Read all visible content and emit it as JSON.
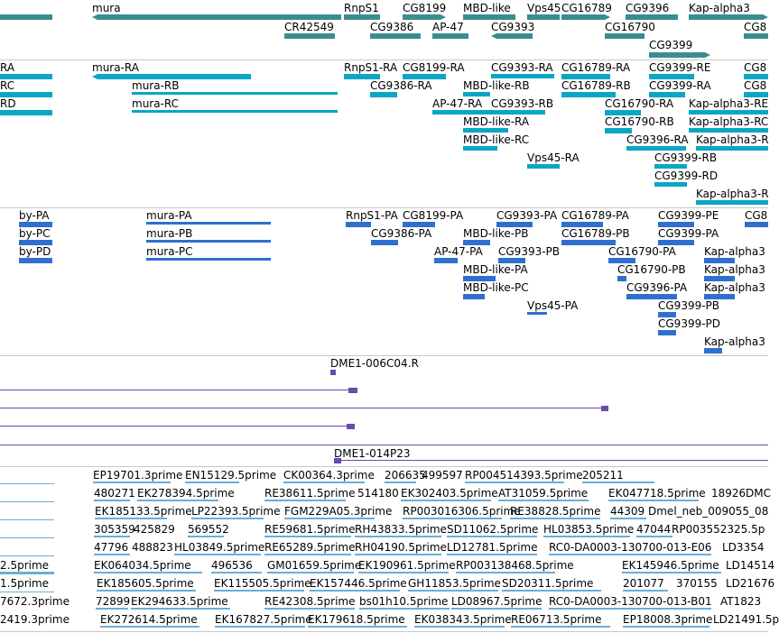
{
  "colors": {
    "gene": "#3a8d8f",
    "transcript": "#0aa6c4",
    "protein": "#2f6fd0",
    "clone": "#6a4ba8",
    "est": "#6aaed8",
    "separator": "#c8c8c8"
  },
  "tracks": {
    "genes": [
      {
        "label": "mura"
      },
      {
        "label": "RnpS1"
      },
      {
        "label": "CG8199"
      },
      {
        "label": "MBD-like"
      },
      {
        "label": "Vps45"
      },
      {
        "label": "CG16789"
      },
      {
        "label": "CG9396"
      },
      {
        "label": "Kap-alpha3"
      },
      {
        "label": "CR42549"
      },
      {
        "label": "CG9386"
      },
      {
        "label": "AP-47"
      },
      {
        "label": "CG9393"
      },
      {
        "label": "CG16790"
      },
      {
        "label": "CG8"
      },
      {
        "label": "CG9399"
      }
    ],
    "transcripts": [
      {
        "label": "RA"
      },
      {
        "label": "RC"
      },
      {
        "label": "RD"
      },
      {
        "label": "mura-RA"
      },
      {
        "label": "mura-RB"
      },
      {
        "label": "mura-RC"
      },
      {
        "label": "RnpS1-RA"
      },
      {
        "label": "CG8199-RA"
      },
      {
        "label": "CG9393-RA"
      },
      {
        "label": "CG16789-RA"
      },
      {
        "label": "CG9399-RE"
      },
      {
        "label": "CG8"
      },
      {
        "label": "CG9386-RA"
      },
      {
        "label": "MBD-like-RB"
      },
      {
        "label": "CG16789-RB"
      },
      {
        "label": "CG9399-RA"
      },
      {
        "label": "CG8"
      },
      {
        "label": "AP-47-RA"
      },
      {
        "label": "CG9393-RB"
      },
      {
        "label": "CG16790-RA"
      },
      {
        "label": "Kap-alpha3-RE"
      },
      {
        "label": "MBD-like-RA"
      },
      {
        "label": "CG16790-RB"
      },
      {
        "label": "Kap-alpha3-RC"
      },
      {
        "label": "MBD-like-RC"
      },
      {
        "label": "CG9396-RA"
      },
      {
        "label": "Kap-alpha3-R"
      },
      {
        "label": "Vps45-RA"
      },
      {
        "label": "CG9399-RB"
      },
      {
        "label": "CG9399-RD"
      },
      {
        "label": "Kap-alpha3-R"
      }
    ],
    "proteins": [
      {
        "label": "by-PA"
      },
      {
        "label": "by-PC"
      },
      {
        "label": "by-PD"
      },
      {
        "label": "mura-PA"
      },
      {
        "label": "mura-PB"
      },
      {
        "label": "mura-PC"
      },
      {
        "label": "RnpS1-PA"
      },
      {
        "label": "CG8199-PA"
      },
      {
        "label": "CG9393-PA"
      },
      {
        "label": "CG16789-PA"
      },
      {
        "label": "CG9399-PE"
      },
      {
        "label": "CG8"
      },
      {
        "label": "CG9386-PA"
      },
      {
        "label": "MBD-like-PB"
      },
      {
        "label": "CG16789-PB"
      },
      {
        "label": "CG9399-PA"
      },
      {
        "label": "AP-47-PA"
      },
      {
        "label": "CG9393-PB"
      },
      {
        "label": "CG16790-PA"
      },
      {
        "label": "Kap-alpha3"
      },
      {
        "label": "MBD-like-PA"
      },
      {
        "label": "CG16790-PB"
      },
      {
        "label": "Kap-alpha3"
      },
      {
        "label": "MBD-like-PC"
      },
      {
        "label": "CG9396-PA"
      },
      {
        "label": "Kap-alpha3"
      },
      {
        "label": "Vps45-PA"
      },
      {
        "label": "CG9399-PB"
      },
      {
        "label": "CG9399-PD"
      },
      {
        "label": "Kap-alpha3"
      }
    ],
    "clones": [
      {
        "label": "DME1-006C04.R"
      },
      {
        "label": "DME1-014P23"
      }
    ],
    "ests": [
      {
        "label": "EP19701.3prime"
      },
      {
        "label": "EN15129.5prime"
      },
      {
        "label": "CK00364.3prime"
      },
      {
        "label": "206635"
      },
      {
        "label": "499597"
      },
      {
        "label": "RP004514393.5prime"
      },
      {
        "label": "205211"
      },
      {
        "label": "480271"
      },
      {
        "label": "EK278394.5prime"
      },
      {
        "label": "RE38611.5prime"
      },
      {
        "label": "514180"
      },
      {
        "label": "EK302403.5prime"
      },
      {
        "label": "AT31059.5prime"
      },
      {
        "label": "EK047718.5prime"
      },
      {
        "label": "18926"
      },
      {
        "label": "DMC"
      },
      {
        "label": "EK185133.5prime"
      },
      {
        "label": "LP22393.5prime"
      },
      {
        "label": "FGM229A05.3prime"
      },
      {
        "label": "RP003016306.5prime"
      },
      {
        "label": "RE38828.5prime"
      },
      {
        "label": "44309"
      },
      {
        "label": "Dmel_neb_009055_08"
      },
      {
        "label": "305359"
      },
      {
        "label": "425829"
      },
      {
        "label": "569552"
      },
      {
        "label": "RE59681.5prime"
      },
      {
        "label": "RH43833.5prime"
      },
      {
        "label": "SD11062.5prime"
      },
      {
        "label": "HL03853.5prime"
      },
      {
        "label": "47044"
      },
      {
        "label": "RP003552325.5p"
      },
      {
        "label": "47796"
      },
      {
        "label": "488823"
      },
      {
        "label": "HL03849.5prime"
      },
      {
        "label": "RE65289.5prime"
      },
      {
        "label": "RH04190.5prime"
      },
      {
        "label": "LD12781.5prime"
      },
      {
        "label": "RC0-DA0003-130700-013-E06"
      },
      {
        "label": "LD3354"
      },
      {
        "label": "2.5prime"
      },
      {
        "label": "EK064034.5prime"
      },
      {
        "label": "496536"
      },
      {
        "label": "GM01659.5prime"
      },
      {
        "label": "EK190961.5prime"
      },
      {
        "label": "RP003138468.5prime"
      },
      {
        "label": "EK145946.5prime"
      },
      {
        "label": "LD14514"
      },
      {
        "label": "1.5prime"
      },
      {
        "label": "EK185605.5prime"
      },
      {
        "label": "EK115505.5prime"
      },
      {
        "label": "EK157446.5prime"
      },
      {
        "label": "GH11853.5prime"
      },
      {
        "label": "SD20311.5prime"
      },
      {
        "label": "201077"
      },
      {
        "label": "370155"
      },
      {
        "label": "LD21676"
      },
      {
        "label": "7672.3prime"
      },
      {
        "label": "72899"
      },
      {
        "label": "EK294633.5prime"
      },
      {
        "label": "RE42308.5prime"
      },
      {
        "label": "bs01h10.5prime"
      },
      {
        "label": "LD08967.5prime"
      },
      {
        "label": "RC0-DA0003-130700-013-B01"
      },
      {
        "label": "AT1823"
      },
      {
        "label": "2419.3prime"
      },
      {
        "label": "EK272614.5prime"
      },
      {
        "label": "EK167827.5prime"
      },
      {
        "label": "EK179618.5prime"
      },
      {
        "label": "EK038343.5prime"
      },
      {
        "label": "RE06713.5prime"
      },
      {
        "label": "EP18008.3prime"
      },
      {
        "label": "LD21491.5p"
      }
    ]
  }
}
